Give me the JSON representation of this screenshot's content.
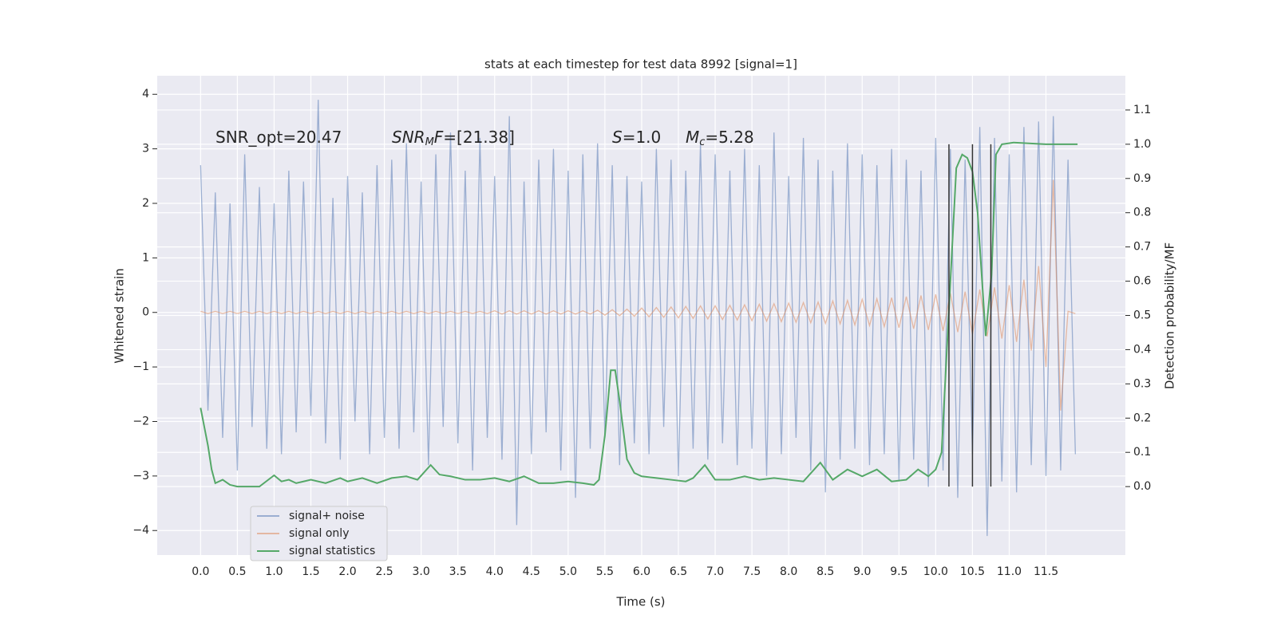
{
  "chart_data": {
    "type": "line",
    "title": "stats at each timestep for test data 8992 [signal=1]",
    "xlabel": "Time (s)",
    "ylabel": "Whitened strain",
    "y2label": "Detection probability/MF",
    "annotations": [
      [
        {
          "text": "SNR_opt=20.47",
          "style": "normal"
        }
      ],
      [
        {
          "text": "SNR",
          "style": "italic"
        },
        {
          "text": "M",
          "style": "sub"
        },
        {
          "text": "F",
          "style": "italic"
        },
        {
          "text": "=[21.38]",
          "style": "normal"
        }
      ],
      [
        {
          "text": "S",
          "style": "italic"
        },
        {
          "text": "=1.0",
          "style": "normal"
        }
      ],
      [
        {
          "text": "M",
          "style": "italic"
        },
        {
          "text": "c",
          "style": "sub"
        },
        {
          "text": "=5.28",
          "style": "normal"
        }
      ]
    ],
    "x": [
      0.0,
      0.1,
      0.2,
      0.3,
      0.4,
      0.5,
      0.6,
      0.7,
      0.8,
      0.9,
      1.0,
      1.1,
      1.2,
      1.3,
      1.4,
      1.5,
      1.6,
      1.7,
      1.8,
      1.9,
      2.0,
      2.1,
      2.2,
      2.3,
      2.4,
      2.5,
      2.6,
      2.7,
      2.8,
      2.9,
      3.0,
      3.1,
      3.2,
      3.3,
      3.4,
      3.5,
      3.6,
      3.7,
      3.8,
      3.9,
      4.0,
      4.1,
      4.2,
      4.3,
      4.4,
      4.5,
      4.6,
      4.7,
      4.8,
      4.9,
      5.0,
      5.1,
      5.2,
      5.3,
      5.4,
      5.5,
      5.6,
      5.7,
      5.8,
      5.9,
      6.0,
      6.1,
      6.2,
      6.3,
      6.4,
      6.5,
      6.6,
      6.7,
      6.8,
      6.9,
      7.0,
      7.1,
      7.2,
      7.3,
      7.4,
      7.5,
      7.6,
      7.7,
      7.8,
      7.9,
      8.0,
      8.1,
      8.2,
      8.3,
      8.4,
      8.5,
      8.6,
      8.7,
      8.8,
      8.9,
      9.0,
      9.1,
      9.2,
      9.3,
      9.4,
      9.5,
      9.6,
      9.7,
      9.8,
      9.9,
      10.0,
      10.1,
      10.2,
      10.3,
      10.4,
      10.5,
      10.6,
      10.7,
      10.8,
      10.9,
      11.0,
      11.1,
      11.2,
      11.3,
      11.4,
      11.5,
      11.6,
      11.7,
      11.8,
      11.9
    ],
    "series": [
      {
        "name": "signal+ noise",
        "color": "#4c72b0",
        "opacity": 0.5,
        "values": [
          2.7,
          -1.8,
          2.2,
          -2.3,
          2.0,
          -2.9,
          2.9,
          -2.1,
          2.3,
          -2.5,
          2.0,
          -2.6,
          2.6,
          -2.2,
          2.4,
          -1.9,
          3.9,
          -2.4,
          2.1,
          -2.7,
          2.5,
          -2.0,
          2.2,
          -2.6,
          2.7,
          -2.3,
          2.8,
          -2.5,
          3.1,
          -2.2,
          2.4,
          -2.8,
          2.9,
          -2.1,
          3.3,
          -2.4,
          2.6,
          -2.9,
          3.2,
          -2.3,
          2.5,
          -2.7,
          3.6,
          -3.9,
          2.4,
          -2.6,
          2.8,
          -2.2,
          3.0,
          -2.9,
          2.6,
          -3.4,
          2.9,
          -2.5,
          3.1,
          -2.3,
          2.7,
          -2.8,
          2.5,
          -2.4,
          2.4,
          -2.6,
          3.0,
          -2.1,
          2.8,
          -3.0,
          2.6,
          -2.5,
          3.1,
          -2.7,
          2.9,
          -2.4,
          2.6,
          -2.8,
          3.0,
          -2.5,
          2.7,
          -3.0,
          3.3,
          -2.6,
          2.5,
          -2.3,
          3.2,
          -2.9,
          2.8,
          -3.3,
          2.6,
          -2.7,
          3.1,
          -2.5,
          2.9,
          -2.8,
          2.7,
          -2.6,
          3.0,
          -3.1,
          2.8,
          -2.7,
          2.6,
          -3.2,
          3.2,
          -2.9,
          3.0,
          -3.4,
          2.8,
          -2.6,
          3.4,
          -4.1,
          3.2,
          -3.1,
          2.9,
          -3.3,
          3.4,
          -2.8,
          3.5,
          -3.0,
          3.6,
          -2.9,
          2.8,
          -2.6
        ]
      },
      {
        "name": "signal only",
        "color": "#dd8452",
        "opacity": 0.5,
        "values": [
          0.02,
          -0.02,
          0.02,
          -0.02,
          0.02,
          -0.02,
          0.02,
          -0.02,
          0.02,
          -0.02,
          0.02,
          -0.02,
          0.02,
          -0.02,
          0.02,
          -0.02,
          0.02,
          -0.02,
          0.02,
          -0.02,
          0.02,
          -0.02,
          0.02,
          -0.02,
          0.02,
          -0.02,
          0.02,
          -0.02,
          0.02,
          -0.02,
          0.02,
          -0.02,
          0.02,
          -0.02,
          0.02,
          -0.02,
          0.02,
          -0.02,
          0.02,
          -0.02,
          0.03,
          -0.03,
          0.03,
          -0.03,
          0.03,
          -0.03,
          0.03,
          -0.03,
          0.03,
          -0.03,
          0.03,
          -0.03,
          0.03,
          -0.03,
          0.04,
          -0.05,
          0.05,
          -0.06,
          0.06,
          -0.07,
          0.08,
          -0.08,
          0.09,
          -0.09,
          0.1,
          -0.1,
          0.11,
          -0.11,
          0.12,
          -0.12,
          0.12,
          -0.13,
          0.13,
          -0.14,
          0.14,
          -0.15,
          0.15,
          -0.16,
          0.16,
          -0.17,
          0.17,
          -0.18,
          0.18,
          -0.19,
          0.19,
          -0.2,
          0.21,
          -0.21,
          0.22,
          -0.23,
          0.24,
          -0.24,
          0.25,
          -0.26,
          0.27,
          -0.28,
          0.29,
          -0.3,
          0.31,
          -0.32,
          0.33,
          -0.34,
          0.35,
          -0.36,
          0.38,
          -0.4,
          0.42,
          -0.44,
          0.46,
          -0.48,
          0.5,
          -0.54,
          0.6,
          -0.7,
          0.85,
          -1.0,
          2.43,
          -1.8,
          0.02,
          -0.02
        ]
      },
      {
        "name": "signal statistics",
        "color": "#55a868",
        "opacity": 1,
        "axis": "y2",
        "x": [
          0.0,
          0.1,
          0.15,
          0.2,
          0.3,
          0.4,
          0.5,
          0.6,
          0.8,
          1.0,
          1.1,
          1.2,
          1.3,
          1.5,
          1.7,
          1.9,
          2.0,
          2.2,
          2.4,
          2.6,
          2.8,
          2.95,
          3.13,
          3.25,
          3.4,
          3.6,
          3.8,
          4.0,
          4.2,
          4.4,
          4.6,
          4.8,
          5.0,
          5.2,
          5.35,
          5.42,
          5.5,
          5.58,
          5.64,
          5.7,
          5.8,
          5.9,
          6.0,
          6.2,
          6.4,
          6.6,
          6.7,
          6.86,
          7.0,
          7.2,
          7.4,
          7.6,
          7.8,
          8.0,
          8.2,
          8.43,
          8.6,
          8.8,
          9.0,
          9.2,
          9.4,
          9.6,
          9.76,
          9.9,
          10.0,
          10.08,
          10.2,
          10.28,
          10.36,
          10.43,
          10.5,
          10.57,
          10.68,
          10.76,
          10.82,
          10.9,
          11.06,
          11.5,
          11.93
        ],
        "values": [
          0.23,
          0.12,
          0.05,
          0.01,
          0.02,
          0.005,
          0.0,
          0.0,
          0.0,
          0.033,
          0.015,
          0.02,
          0.01,
          0.02,
          0.01,
          0.025,
          0.015,
          0.025,
          0.01,
          0.025,
          0.03,
          0.02,
          0.063,
          0.035,
          0.03,
          0.02,
          0.02,
          0.025,
          0.015,
          0.03,
          0.01,
          0.01,
          0.015,
          0.01,
          0.005,
          0.02,
          0.15,
          0.34,
          0.34,
          0.25,
          0.08,
          0.04,
          0.03,
          0.025,
          0.02,
          0.015,
          0.025,
          0.063,
          0.02,
          0.02,
          0.03,
          0.02,
          0.025,
          0.02,
          0.015,
          0.07,
          0.02,
          0.05,
          0.03,
          0.05,
          0.015,
          0.02,
          0.05,
          0.03,
          0.05,
          0.1,
          0.6,
          0.93,
          0.97,
          0.96,
          0.92,
          0.8,
          0.44,
          0.62,
          0.97,
          1.0,
          1.005,
          1.0,
          1.0
        ]
      }
    ],
    "vlines": [
      10.18,
      10.5,
      10.75
    ],
    "vline_color": "#333333",
    "vline_span": [
      0,
      1
    ],
    "xlim": [
      -0.59,
      12.58
    ],
    "ylim": [
      -4.45,
      4.34
    ],
    "y2lim": [
      -0.2,
      1.2
    ],
    "xticks": [
      {
        "value": 0,
        "label": "0.0"
      },
      {
        "value": 0.5,
        "label": "0.5"
      },
      {
        "value": 1,
        "label": "1.0"
      },
      {
        "value": 1.5,
        "label": "1.5"
      },
      {
        "value": 2,
        "label": "2.0"
      },
      {
        "value": 2.5,
        "label": "2.5"
      },
      {
        "value": 3,
        "label": "3.0"
      },
      {
        "value": 3.5,
        "label": "3.5"
      },
      {
        "value": 4,
        "label": "4.0"
      },
      {
        "value": 4.5,
        "label": "4.5"
      },
      {
        "value": 5,
        "label": "5.0"
      },
      {
        "value": 5.5,
        "label": "5.5"
      },
      {
        "value": 6,
        "label": "6.0"
      },
      {
        "value": 6.5,
        "label": "6.5"
      },
      {
        "value": 7,
        "label": "7.0"
      },
      {
        "value": 7.5,
        "label": "7.5"
      },
      {
        "value": 8,
        "label": "8.0"
      },
      {
        "value": 8.5,
        "label": "8.5"
      },
      {
        "value": 9,
        "label": "9.0"
      },
      {
        "value": 9.5,
        "label": "9.5"
      },
      {
        "value": 10,
        "label": "10.0"
      },
      {
        "value": 10.5,
        "label": "10.5"
      },
      {
        "value": 11,
        "label": "11.0"
      },
      {
        "value": 11.5,
        "label": "11.5"
      }
    ],
    "yticks": [
      {
        "value": -4,
        "label": "−4"
      },
      {
        "value": -3,
        "label": "−3"
      },
      {
        "value": -2,
        "label": "−2"
      },
      {
        "value": -1,
        "label": "−1"
      },
      0,
      1,
      2,
      3,
      4
    ],
    "y2ticks": [
      {
        "value": 0,
        "label": "0.0"
      },
      {
        "value": 0.1,
        "label": "0.1"
      },
      {
        "value": 0.2,
        "label": "0.2"
      },
      {
        "value": 0.3,
        "label": "0.3"
      },
      {
        "value": 0.4,
        "label": "0.4"
      },
      {
        "value": 0.5,
        "label": "0.5"
      },
      {
        "value": 0.6,
        "label": "0.6"
      },
      {
        "value": 0.7,
        "label": "0.7"
      },
      {
        "value": 0.8,
        "label": "0.8"
      },
      {
        "value": 0.9,
        "label": "0.9"
      },
      {
        "value": 1,
        "label": "1.0"
      },
      {
        "value": 1.1,
        "label": "1.1"
      }
    ],
    "grid": true,
    "legend": "lower left"
  }
}
